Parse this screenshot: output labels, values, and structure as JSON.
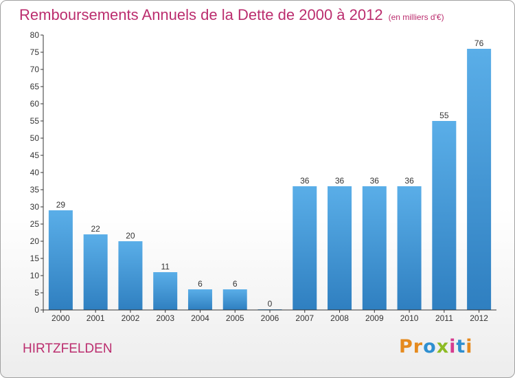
{
  "chart_data": {
    "type": "bar",
    "title": "Remboursements Annuels de la Dette de 2000 à 2012",
    "subtitle": "(en milliers d'€)",
    "categories": [
      "2000",
      "2001",
      "2002",
      "2003",
      "2004",
      "2005",
      "2006",
      "2007",
      "2008",
      "2009",
      "2010",
      "2011",
      "2012"
    ],
    "values": [
      29,
      22,
      20,
      11,
      6,
      6,
      0,
      36,
      36,
      36,
      36,
      55,
      76
    ],
    "ylim": [
      0,
      80
    ],
    "yticks": [
      0,
      5,
      10,
      15,
      20,
      25,
      30,
      35,
      40,
      45,
      50,
      55,
      60,
      65,
      70,
      75,
      80
    ],
    "grid": false,
    "bar_color": "#4a9fdc"
  },
  "footer": {
    "commune": "HIRTZFELDEN",
    "logo_letters": [
      {
        "ch": "P",
        "color": "#e58a1e"
      },
      {
        "ch": "r",
        "color": "#e58a1e"
      },
      {
        "ch": "o",
        "color": "#2f8fd0"
      },
      {
        "ch": "x",
        "color": "#8dbb24"
      },
      {
        "ch": "i",
        "color": "#d63b8f"
      },
      {
        "ch": "t",
        "color": "#2f8fd0"
      },
      {
        "ch": "i",
        "color": "#e58a1e"
      }
    ]
  }
}
